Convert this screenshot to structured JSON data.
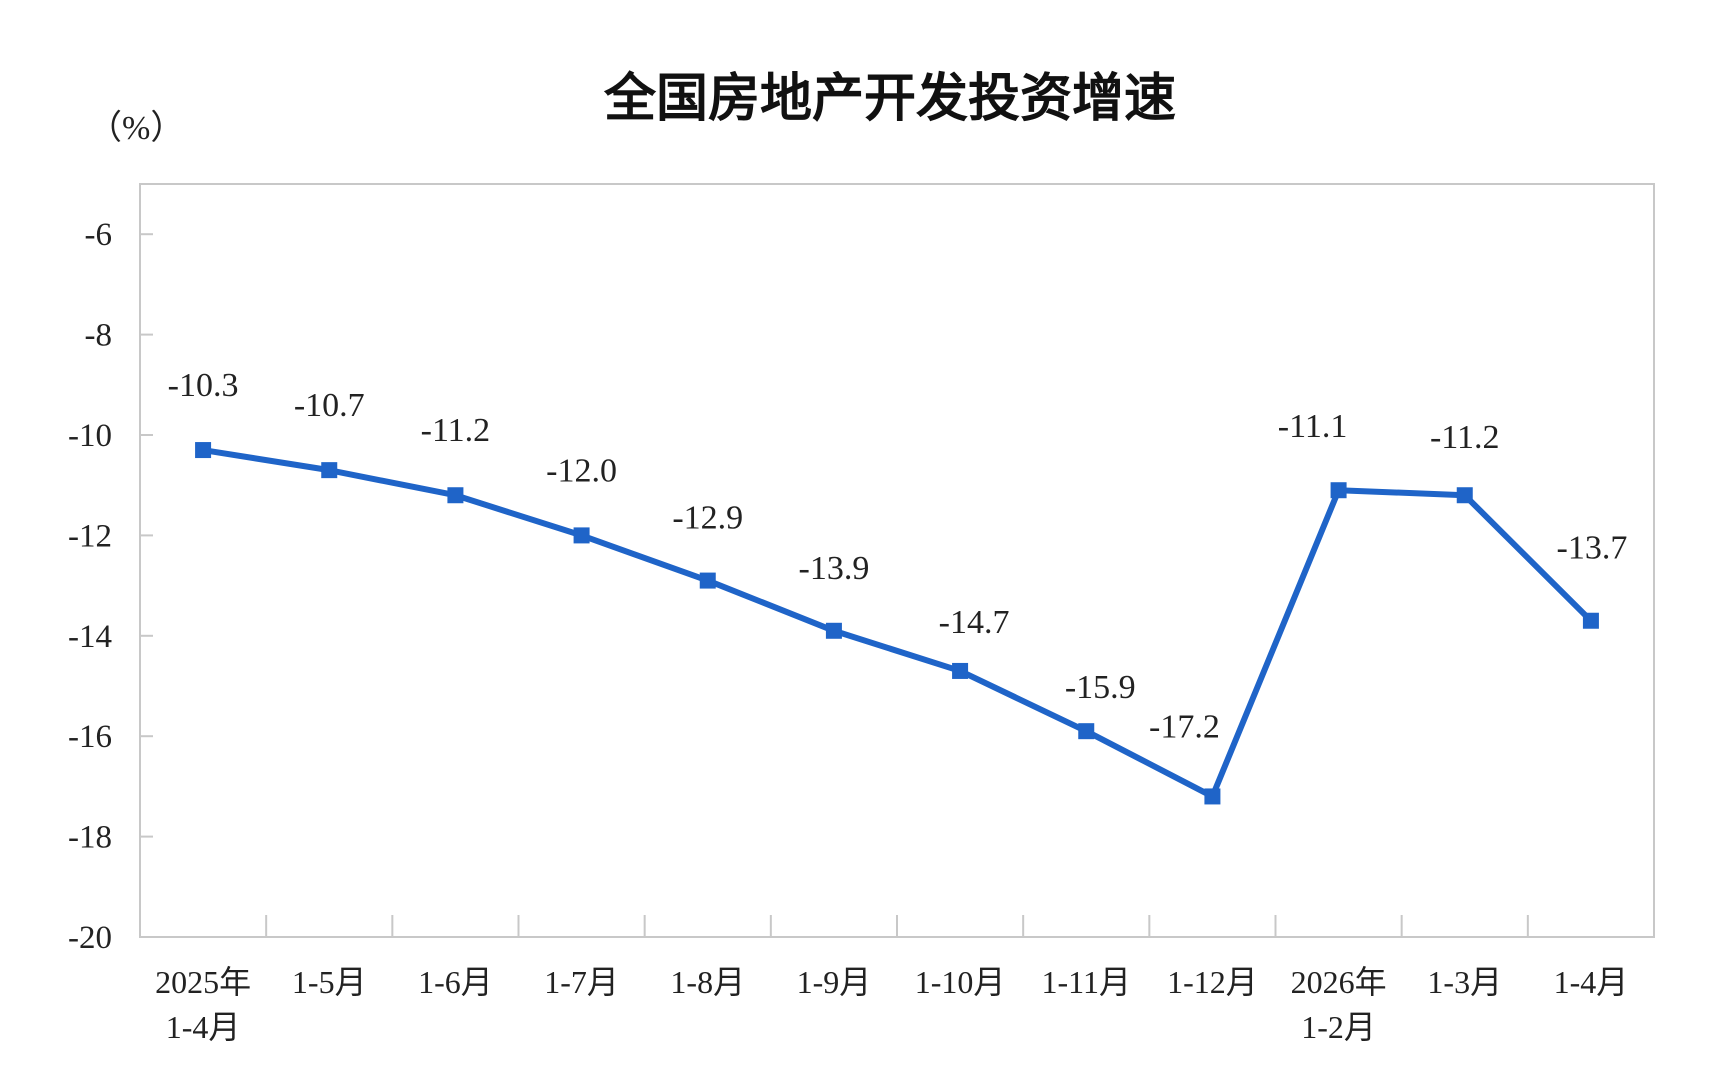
{
  "chart_data": {
    "type": "line",
    "title": "全国房地产开发投资增速",
    "unit_label": "（%）",
    "xlabel": "",
    "ylabel": "",
    "categories": [
      [
        "2025年",
        "1-4月"
      ],
      [
        "1-5月"
      ],
      [
        "1-6月"
      ],
      [
        "1-7月"
      ],
      [
        "1-8月"
      ],
      [
        "1-9月"
      ],
      [
        "1-10月"
      ],
      [
        "1-11月"
      ],
      [
        "1-12月"
      ],
      [
        "2026年",
        "1-2月"
      ],
      [
        "1-3月"
      ],
      [
        "1-4月"
      ]
    ],
    "series": [
      {
        "color": "#1f64c8",
        "values": [
          -10.3,
          -10.7,
          -11.2,
          -12.0,
          -12.9,
          -13.9,
          -14.7,
          -15.9,
          -17.2,
          -11.1,
          -11.2,
          -13.7
        ],
        "labels": [
          "-10.3",
          "-10.7",
          "-11.2",
          "-12.0",
          "-12.9",
          "-13.9",
          "-14.7",
          "-15.9",
          "-17.2",
          "-11.1",
          "-11.2",
          "-13.7"
        ]
      }
    ],
    "ylim": [
      -20,
      -5
    ],
    "yticks": [
      -6,
      -8,
      -10,
      -12,
      -14,
      -16,
      -18,
      -20
    ],
    "ytick_labels": [
      "-6",
      "-8",
      "-10",
      "-12",
      "-14",
      "-16",
      "-18",
      "-20"
    ],
    "grid": false,
    "legend": "none"
  }
}
